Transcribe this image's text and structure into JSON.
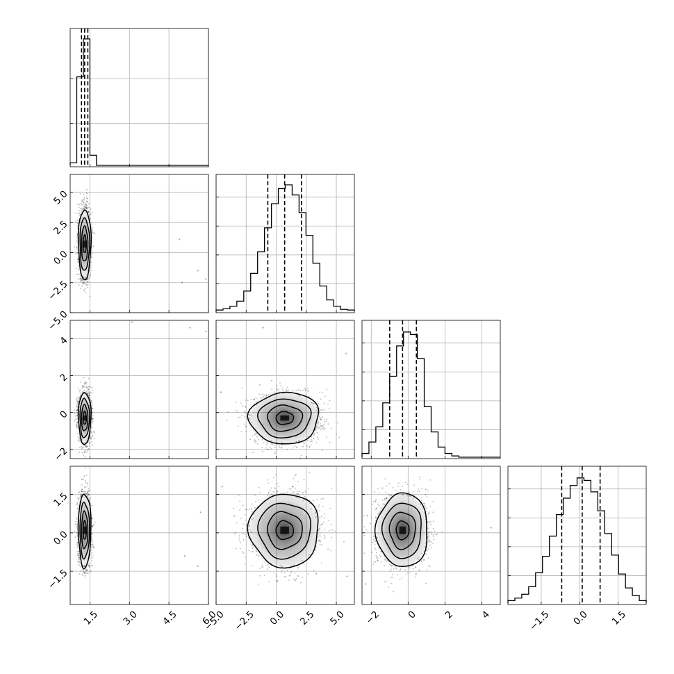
{
  "chart_data": {
    "type": "corner",
    "n_params": 4,
    "params": [
      {
        "range": [
          0.75,
          6.0
        ],
        "ticks": [
          1.5,
          3.0,
          4.5,
          6.0
        ],
        "tick_labels": [
          "1.5",
          "3.0",
          "4.5",
          "6.0"
        ],
        "mean": 1.3,
        "sd": 0.12,
        "quantiles": [
          1.18,
          1.3,
          1.42
        ]
      },
      {
        "range": [
          -5.0,
          6.5
        ],
        "ticks": [
          -5.0,
          -2.5,
          0.0,
          2.5,
          5.0
        ],
        "tick_labels": [
          "−5.0",
          "−2.5",
          "0.0",
          "2.5",
          "5.0"
        ],
        "mean": 0.7,
        "sd": 1.45,
        "quantiles": [
          -0.7,
          0.7,
          2.1
        ]
      },
      {
        "range": [
          -2.5,
          5.0
        ],
        "ticks": [
          -2,
          0,
          2,
          4
        ],
        "tick_labels": [
          "−2",
          "0",
          "2",
          "4"
        ],
        "mean": -0.3,
        "sd": 0.7,
        "quantiles": [
          -1.0,
          -0.3,
          0.45
        ]
      },
      {
        "range": [
          -2.8,
          2.6
        ],
        "ticks": [
          -1.5,
          0.0,
          1.5
        ],
        "tick_labels": [
          "−1.5",
          "0.0",
          "1.5"
        ],
        "mean": 0.1,
        "sd": 0.72,
        "quantiles": [
          -0.7,
          0.1,
          0.8
        ]
      }
    ],
    "histograms": [
      {
        "param": 0,
        "bins": [
          0.75,
          1.0,
          1.25,
          1.5,
          1.75,
          2.0,
          2.25,
          2.5,
          2.75,
          3.0,
          3.25,
          3.5,
          3.75,
          4.0,
          4.25,
          4.5,
          4.75,
          5.0,
          5.25,
          5.5,
          5.75,
          6.0
        ],
        "counts": [
          0.02,
          0.7,
          1.0,
          0.08,
          0,
          0,
          0,
          0,
          0,
          0,
          0,
          0,
          0,
          0,
          0,
          0,
          0,
          0,
          0,
          0,
          0
        ]
      },
      {
        "param": 1,
        "bins": [
          -5.0,
          -4.425,
          -3.85,
          -3.275,
          -2.7,
          -2.125,
          -1.55,
          -0.975,
          -0.4,
          0.175,
          0.75,
          1.325,
          1.9,
          2.475,
          3.05,
          3.625,
          4.2,
          4.775,
          5.35,
          5.925,
          6.5
        ],
        "counts": [
          0.01,
          0.02,
          0.04,
          0.08,
          0.16,
          0.3,
          0.47,
          0.66,
          0.85,
          0.97,
          1.0,
          0.92,
          0.78,
          0.6,
          0.38,
          0.2,
          0.09,
          0.04,
          0.015,
          0.01
        ]
      },
      {
        "param": 2,
        "bins": [
          -2.5,
          -2.125,
          -1.75,
          -1.375,
          -1.0,
          -0.625,
          -0.25,
          0.125,
          0.5,
          0.875,
          1.25,
          1.625,
          2.0,
          2.375,
          2.75,
          3.125,
          3.5,
          3.875,
          4.25,
          4.625,
          5.0
        ],
        "counts": [
          0.03,
          0.12,
          0.24,
          0.43,
          0.64,
          0.88,
          0.99,
          0.97,
          0.78,
          0.4,
          0.2,
          0.08,
          0.03,
          0.01,
          0.0,
          0.0,
          0.0,
          0.0,
          0.0,
          0.0
        ]
      },
      {
        "param": 3,
        "bins": [
          -2.8,
          -2.53,
          -2.26,
          -1.99,
          -1.72,
          -1.45,
          -1.18,
          -0.91,
          -0.64,
          -0.37,
          -0.1,
          0.17,
          0.44,
          0.71,
          0.98,
          1.25,
          1.52,
          1.79,
          2.06,
          2.33,
          2.6
        ],
        "counts": [
          0.02,
          0.04,
          0.07,
          0.13,
          0.24,
          0.37,
          0.53,
          0.7,
          0.83,
          0.93,
          0.99,
          0.97,
          0.88,
          0.73,
          0.55,
          0.38,
          0.23,
          0.12,
          0.06,
          0.02
        ]
      }
    ],
    "pairs": [
      {
        "x": 0,
        "y": 1,
        "rho": 0.0,
        "outliers": [
          [
            4.9,
            1.1
          ],
          [
            5.6,
            -1.5
          ],
          [
            5.9,
            -2.2
          ],
          [
            5.0,
            -2.5
          ]
        ]
      },
      {
        "x": 0,
        "y": 2,
        "rho": 0.0,
        "outliers": [
          [
            5.3,
            4.6
          ],
          [
            5.9,
            4.4
          ],
          [
            3.1,
            4.9
          ]
        ]
      },
      {
        "x": 1,
        "y": 2,
        "rho": -0.08,
        "outliers": [
          [
            -1.1,
            4.6
          ],
          [
            5.8,
            3.2
          ],
          [
            -4.6,
            1.1
          ]
        ]
      },
      {
        "x": 0,
        "y": 3,
        "rho": 0.0,
        "outliers": [
          [
            5.7,
            0.8
          ],
          [
            5.1,
            -0.9
          ],
          [
            5.6,
            -1.3
          ]
        ]
      },
      {
        "x": 1,
        "y": 3,
        "rho": 0.0,
        "outliers": [
          [
            -4.5,
            1.8
          ],
          [
            5.9,
            -1.7
          ]
        ]
      },
      {
        "x": 2,
        "y": 3,
        "rho": 0.0,
        "outliers": [
          [
            4.5,
            0.2
          ],
          [
            -2.3,
            -2.0
          ]
        ]
      }
    ],
    "contour_levels_sigma": [
      0.5,
      1.0,
      1.5,
      2.0
    ],
    "grid": true,
    "axis_labels": []
  }
}
